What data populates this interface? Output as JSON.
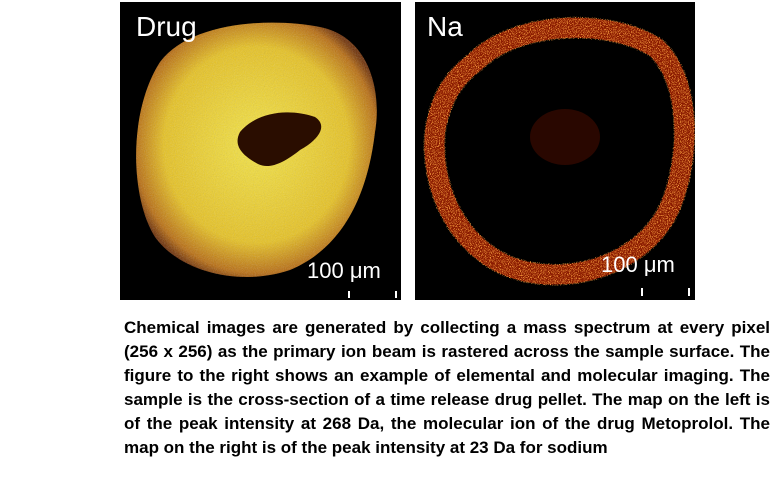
{
  "panels": [
    {
      "label": "Drug",
      "scale": "100 μm"
    },
    {
      "label": "Na",
      "scale": "100 μm"
    }
  ],
  "caption": "Chemical images are generated by collecting a mass spectrum at every pixel (256 x 256) as the primary ion beam is rastered across the sample surface. The figure to the right shows an example of elemental and molecular imaging. The sample is the cross-section of a time release drug pellet. The map on the left is of the peak intensity at 268 Da, the molecular ion of the drug Metoprolol. The map on the right is of the peak intensity at 23 Da for sodium"
}
